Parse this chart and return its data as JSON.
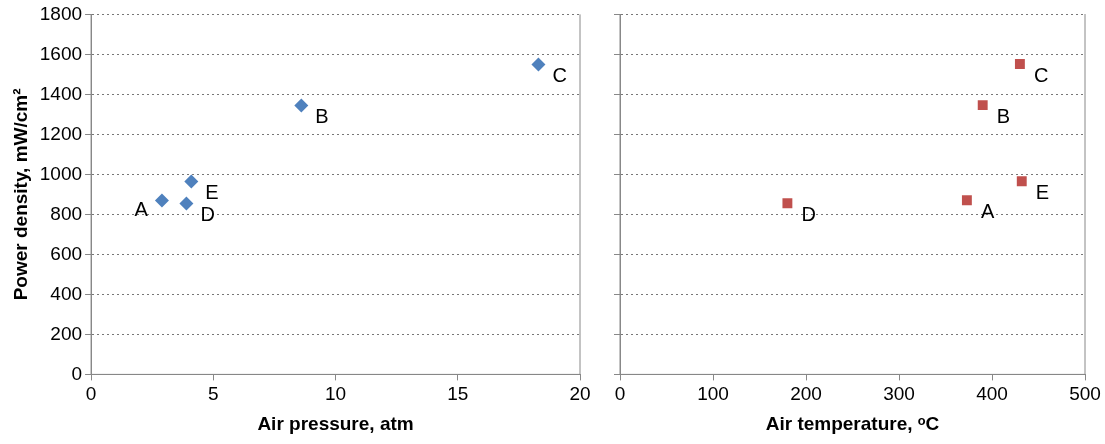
{
  "chart_data": [
    {
      "type": "scatter",
      "xlabel": "Air pressure, atm",
      "ylabel": "Power density, mW/cm²",
      "x": [
        2.9,
        8.6,
        18.3,
        3.9,
        4.1
      ],
      "values": [
        870,
        1345,
        1550,
        855,
        965
      ],
      "color": "#4f81bd",
      "marker": "diamond",
      "xlim": [
        0,
        20
      ],
      "xticks": [
        0,
        5,
        10,
        15,
        20
      ],
      "ylim": [
        0,
        1800
      ],
      "yticks": [
        0,
        200,
        400,
        600,
        800,
        1000,
        1200,
        1400,
        1600,
        1800
      ],
      "grid": "y",
      "annotations": [
        {
          "text": "A",
          "x": 2.9,
          "y": 870
        },
        {
          "text": "B",
          "x": 8.6,
          "y": 1345
        },
        {
          "text": "C",
          "x": 18.3,
          "y": 1550
        },
        {
          "text": "D",
          "x": 3.9,
          "y": 855
        },
        {
          "text": "E",
          "x": 4.1,
          "y": 965
        }
      ]
    },
    {
      "type": "scatter",
      "xlabel": "Air temperature, ᵒC",
      "x": [
        373,
        390,
        430,
        180,
        432
      ],
      "values": [
        870,
        1345,
        1550,
        855,
        965
      ],
      "color": "#c0504d",
      "marker": "square",
      "xlim": [
        0,
        500
      ],
      "xticks": [
        0,
        100,
        200,
        300,
        400,
        500
      ],
      "ylim": [
        0,
        1800
      ],
      "yticks": [
        0,
        200,
        400,
        600,
        800,
        1000,
        1200,
        1400,
        1600,
        1800
      ],
      "grid": "y",
      "tick_labels": "x",
      "annotations": [
        {
          "text": "A",
          "x": 373,
          "y": 870
        },
        {
          "text": "B",
          "x": 390,
          "y": 1345
        },
        {
          "text": "C",
          "x": 430,
          "y": 1550
        },
        {
          "text": "D",
          "x": 180,
          "y": 855
        },
        {
          "text": "E",
          "x": 432,
          "y": 965
        }
      ]
    }
  ]
}
